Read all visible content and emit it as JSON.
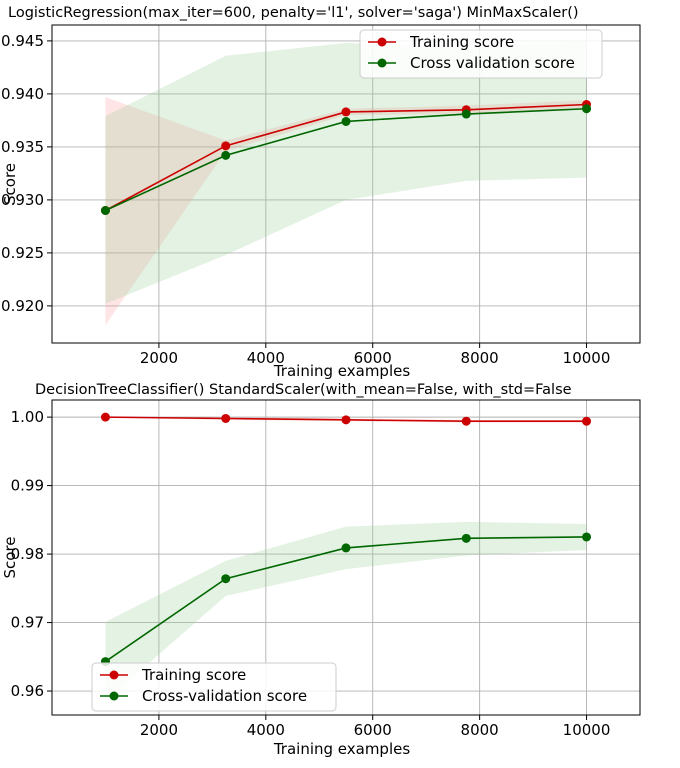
{
  "chart_data": [
    {
      "type": "line",
      "title": "LogisticRegression(max_iter=600, penalty='l1', solver='saga') MinMaxScaler()",
      "xlabel": "Training examples",
      "ylabel": "Score",
      "xlim": [
        0,
        11000
      ],
      "ylim": [
        0.9165,
        0.9465
      ],
      "x_ticks": [
        2000,
        4000,
        6000,
        8000,
        10000
      ],
      "y_ticks": [
        0.92,
        0.925,
        0.93,
        0.935,
        0.94,
        0.945
      ],
      "y_tick_labels": [
        "0.920",
        "0.925",
        "0.930",
        "0.935",
        "0.940",
        "0.945"
      ],
      "grid": true,
      "legend_position": "top-right",
      "x": [
        1000,
        3250,
        5500,
        7750,
        10000
      ],
      "series": [
        {
          "name": "Training score",
          "color": "#cc0000",
          "values": [
            0.929,
            0.9351,
            0.9383,
            0.9385,
            0.939
          ],
          "band_lower": [
            0.9182,
            0.9346,
            0.938,
            0.9381,
            0.9386
          ],
          "band_upper": [
            0.9397,
            0.9356,
            0.9386,
            0.9389,
            0.9394
          ],
          "band_color": "#ff9999"
        },
        {
          "name": "Cross validation score",
          "color": "#006600",
          "values": [
            0.929,
            0.9342,
            0.9374,
            0.9381,
            0.9386
          ],
          "band_lower": [
            0.9202,
            0.9248,
            0.93,
            0.9318,
            0.9321
          ],
          "band_upper": [
            0.9379,
            0.9436,
            0.9448,
            0.9444,
            0.945
          ],
          "band_color": "#8fcc8f"
        }
      ]
    },
    {
      "type": "line",
      "title": "DecisionTreeClassifier() StandardScaler(with_mean=False, with_std=False",
      "xlabel": "Training examples",
      "ylabel": "Score",
      "xlim": [
        0,
        11000
      ],
      "ylim": [
        0.9565,
        1.0025
      ],
      "x_ticks": [
        2000,
        4000,
        6000,
        8000,
        10000
      ],
      "y_ticks": [
        0.96,
        0.97,
        0.98,
        0.99,
        1.0
      ],
      "y_tick_labels": [
        "0.96",
        "0.97",
        "0.98",
        "0.99",
        "1.00"
      ],
      "grid": true,
      "legend_position": "bottom-left",
      "x": [
        1000,
        3250,
        5500,
        7750,
        10000
      ],
      "series": [
        {
          "name": "Training score",
          "color": "#cc0000",
          "values": [
            1.0,
            0.9998,
            0.9996,
            0.9994,
            0.9994
          ],
          "band_lower": [
            1.0,
            0.9996,
            0.9994,
            0.9992,
            0.9992
          ],
          "band_upper": [
            1.0,
            1.0,
            0.9998,
            0.9996,
            0.9996
          ],
          "band_color": "#ff9999"
        },
        {
          "name": "Cross-validation score",
          "color": "#006600",
          "values": [
            0.9643,
            0.9764,
            0.9809,
            0.9823,
            0.9825
          ],
          "band_lower": [
            0.9585,
            0.9739,
            0.9778,
            0.9798,
            0.9806
          ],
          "band_upper": [
            0.9701,
            0.979,
            0.984,
            0.9847,
            0.9844
          ],
          "band_color": "#8fcc8f"
        }
      ]
    }
  ]
}
